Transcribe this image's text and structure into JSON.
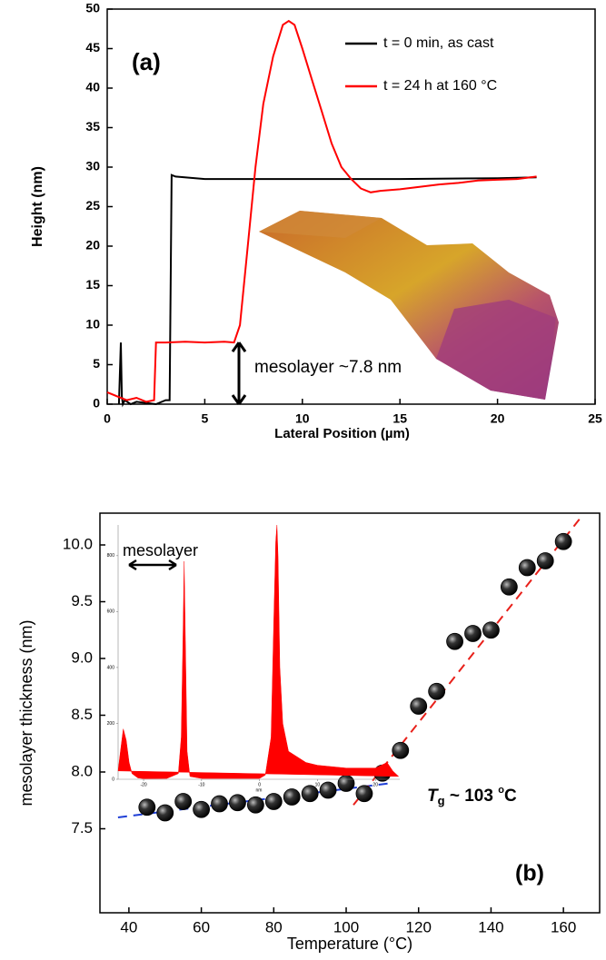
{
  "chart_data": [
    {
      "type": "line",
      "label": "(a)",
      "xlabel": "Lateral Position (µm)",
      "ylabel": "Height (nm)",
      "xlim": [
        0,
        25
      ],
      "ylim": [
        0,
        50
      ],
      "xticks": [
        0,
        5,
        10,
        15,
        20,
        25
      ],
      "yticks": [
        0,
        5,
        10,
        15,
        20,
        25,
        30,
        35,
        40,
        45,
        50
      ],
      "legend": "upper right",
      "series": [
        {
          "name": "t = 0 min, as cast",
          "color": "#000000",
          "x": [
            0.6,
            0.7,
            0.75,
            0.8,
            0.9,
            1.2,
            1.5,
            2.5,
            3.0,
            3.2,
            3.3,
            3.5,
            5,
            10,
            15,
            20,
            22
          ],
          "values": [
            0,
            7.8,
            1,
            0,
            0.5,
            0,
            0.3,
            0,
            0.5,
            0.5,
            29,
            28.8,
            28.5,
            28.5,
            28.5,
            28.6,
            28.7
          ]
        },
        {
          "name": "t = 24 h at 160 °C",
          "color": "#ff0000",
          "x": [
            0,
            0.5,
            1,
            1.5,
            2,
            2.4,
            2.5,
            3,
            4,
            5,
            6,
            6.5,
            6.8,
            7.2,
            7.6,
            8,
            8.5,
            9,
            9.3,
            9.6,
            10,
            10.5,
            11,
            11.5,
            12,
            12.5,
            13,
            13.5,
            14,
            15,
            16,
            17,
            18,
            19,
            20,
            21,
            22
          ],
          "values": [
            1.5,
            1,
            0.5,
            0.8,
            0.3,
            0.5,
            7.8,
            7.8,
            7.9,
            7.8,
            7.9,
            7.8,
            10,
            20,
            30,
            38,
            44,
            48,
            48.5,
            48,
            45,
            41,
            37,
            33,
            30,
            28.5,
            27.3,
            26.8,
            27,
            27.2,
            27.5,
            27.8,
            28,
            28.3,
            28.4,
            28.5,
            28.8
          ]
        }
      ],
      "annotation": "mesolayer ~7.8 nm",
      "mesolayer_thickness": 7.8
    },
    {
      "type": "scatter",
      "label": "(b)",
      "xlabel": "Temperature (°C)",
      "ylabel": "mesolayer thickness (nm)",
      "xlim": [
        32,
        170
      ],
      "ylim": [
        6.76,
        10.28
      ],
      "xticks": [
        40,
        60,
        80,
        100,
        120,
        140,
        160
      ],
      "yticks": [
        7.5,
        {
          "value": 8,
          "label": "8.0"
        },
        8.5,
        {
          "value": 9,
          "label": "9.0"
        },
        9.5,
        {
          "value": 10,
          "label": "10.0"
        }
      ],
      "series": [
        {
          "color": "#000000",
          "x": [
            45,
            50,
            55,
            60,
            65,
            70,
            75,
            80,
            85,
            90,
            95,
            100,
            105,
            110,
            115,
            120,
            125,
            130,
            135,
            140,
            145,
            150,
            155,
            160
          ],
          "values": [
            7.69,
            7.64,
            7.74,
            7.67,
            7.72,
            7.73,
            7.71,
            7.74,
            7.78,
            7.81,
            7.84,
            7.9,
            7.81,
            7.99,
            8.19,
            8.58,
            8.71,
            9.15,
            9.22,
            9.25,
            9.63,
            9.8,
            9.86,
            10.03
          ]
        }
      ],
      "fits": [
        {
          "color": "#1f3fd6",
          "x": [
            37,
            112
          ],
          "values": [
            7.6,
            7.9
          ]
        },
        {
          "color": "#e8201a",
          "x": [
            102,
            165
          ],
          "values": [
            7.71,
            10.25
          ]
        }
      ],
      "tg_label": [
        "T",
        "g",
        " ~ 103 ",
        "o",
        "C"
      ]
    },
    {
      "type": "area",
      "label": "mesolayer",
      "xlabel": "nm",
      "color": "#ff0000",
      "xlim": [
        -24.4,
        24.2
      ],
      "ylim": [
        0,
        910
      ],
      "xticks": [
        -20,
        -10,
        0,
        10,
        20
      ],
      "yticks": [
        0,
        200,
        400,
        600,
        800
      ],
      "x": [
        -24.4,
        -24,
        -23.5,
        -23,
        -22.5,
        -22,
        -21,
        -20,
        -16,
        -14,
        -13.5,
        -13.2,
        -13,
        -12.8,
        -12.5,
        -12,
        -10,
        0,
        1,
        2,
        2.5,
        2.8,
        3,
        3.2,
        3.5,
        4,
        5,
        8,
        10,
        15,
        20,
        22,
        23,
        24
      ],
      "values": [
        30,
        100,
        180,
        140,
        60,
        20,
        5,
        2,
        3,
        20,
        150,
        500,
        780,
        500,
        100,
        10,
        3,
        3,
        15,
        150,
        600,
        850,
        910,
        800,
        400,
        200,
        100,
        60,
        50,
        40,
        40,
        60,
        30,
        10
      ]
    }
  ]
}
